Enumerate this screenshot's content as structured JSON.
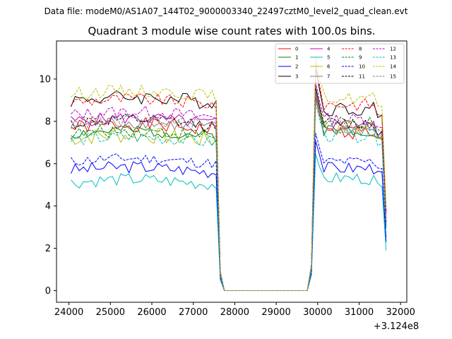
{
  "header": {
    "data_file": "Data file: modeM0/AS1A07_144T02_9000003340_22497cztM0_level2_quad_clean.evt"
  },
  "chart_data": {
    "type": "line",
    "title": "Quadrant 3 module wise count rates with 100.0s bins.",
    "xlabel": "",
    "ylabel": "",
    "x_offset_label": "+3.124e8",
    "xlim": [
      23700,
      32150
    ],
    "ylim": [
      -0.55,
      11.8
    ],
    "x_ticks": [
      24000,
      25000,
      26000,
      27000,
      28000,
      29000,
      30000,
      31000,
      32000
    ],
    "y_ticks": [
      0,
      2,
      4,
      6,
      8,
      10
    ],
    "grid": false,
    "legend_position": "top-right",
    "active_windows": [
      [
        24050,
        27550
      ],
      [
        29950,
        31550
      ]
    ],
    "transitions": {
      "decay_x": [
        27550,
        27650,
        27750
      ],
      "decay_frac": [
        0.72,
        0.1,
        0.0
      ],
      "rise_x": [
        29750,
        29850,
        29950
      ],
      "rise_frac": [
        0.0,
        0.14,
        1.05
      ],
      "end_x": 31650,
      "end_frac": 0.28
    },
    "series": [
      {
        "name": "0",
        "color": "#ff0000",
        "dash": "solid",
        "base1": 7.7,
        "base2": 7.5,
        "amp": 0.35,
        "seed": 1,
        "end": 3.3
      },
      {
        "name": "1",
        "color": "#008000",
        "dash": "solid",
        "base1": 7.4,
        "base2": 7.6,
        "amp": 0.3,
        "seed": 2,
        "end": 3.0
      },
      {
        "name": "2",
        "color": "#0000ff",
        "dash": "solid",
        "base1": 5.7,
        "base2": 5.8,
        "amp": 0.3,
        "seed": 3,
        "end": 2.3
      },
      {
        "name": "3",
        "color": "#000000",
        "dash": "solid",
        "base1": 9.0,
        "base2": 8.6,
        "amp": 0.35,
        "seed": 4,
        "end": 3.7
      },
      {
        "name": "4",
        "color": "#bf00bf",
        "dash": "solid",
        "base1": 8.0,
        "base2": 7.8,
        "amp": 0.3,
        "seed": 5,
        "end": 3.2
      },
      {
        "name": "5",
        "color": "#00bfbf",
        "dash": "solid",
        "base1": 5.1,
        "base2": 5.3,
        "amp": 0.3,
        "seed": 6,
        "end": 1.9
      },
      {
        "name": "6",
        "color": "#bfbf00",
        "dash": "solid",
        "base1": 7.2,
        "base2": 7.7,
        "amp": 0.4,
        "seed": 7,
        "end": 3.0
      },
      {
        "name": "7",
        "color": "#808080",
        "dash": "solid",
        "base1": 7.8,
        "base2": 7.6,
        "amp": 0.3,
        "seed": 8,
        "end": 3.1
      },
      {
        "name": "8",
        "color": "#ff0000",
        "dash": "dashed",
        "base1": 8.9,
        "base2": 8.8,
        "amp": 0.3,
        "seed": 9,
        "end": 3.8
      },
      {
        "name": "9",
        "color": "#008000",
        "dash": "dashed",
        "base1": 7.4,
        "base2": 7.9,
        "amp": 0.3,
        "seed": 10,
        "end": 3.1
      },
      {
        "name": "10",
        "color": "#0000ff",
        "dash": "dashed",
        "base1": 6.1,
        "base2": 6.1,
        "amp": 0.25,
        "seed": 11,
        "end": 2.5
      },
      {
        "name": "11",
        "color": "#000000",
        "dash": "dashed",
        "base1": 7.9,
        "base2": 7.9,
        "amp": 0.3,
        "seed": 12,
        "end": 3.2
      },
      {
        "name": "12",
        "color": "#bf00bf",
        "dash": "dashed",
        "base1": 8.3,
        "base2": 8.1,
        "amp": 0.3,
        "seed": 13,
        "end": 3.4
      },
      {
        "name": "13",
        "color": "#00bfbf",
        "dash": "dashed",
        "base1": 7.1,
        "base2": 7.3,
        "amp": 0.3,
        "seed": 14,
        "end": 2.9
      },
      {
        "name": "14",
        "color": "#bfbf00",
        "dash": "dashed",
        "base1": 9.3,
        "base2": 9.1,
        "amp": 0.3,
        "seed": 15,
        "end": 3.9
      },
      {
        "name": "15",
        "color": "#808080",
        "dash": "dashed",
        "base1": 7.9,
        "base2": 7.7,
        "amp": 0.3,
        "seed": 16,
        "end": 3.2
      }
    ]
  }
}
